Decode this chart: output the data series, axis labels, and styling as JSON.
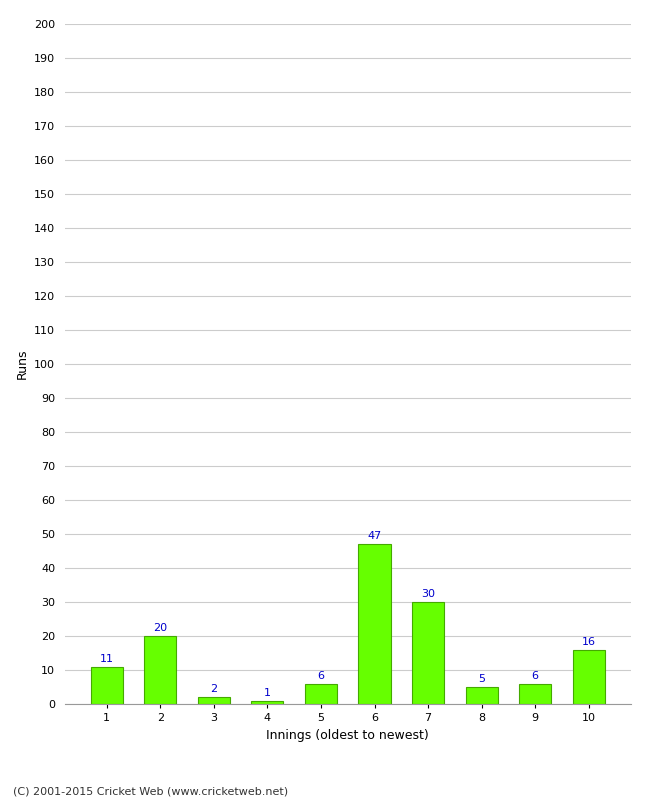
{
  "categories": [
    "1",
    "2",
    "3",
    "4",
    "5",
    "6",
    "7",
    "8",
    "9",
    "10"
  ],
  "values": [
    11,
    20,
    2,
    1,
    6,
    47,
    30,
    5,
    6,
    16
  ],
  "bar_color": "#66ff00",
  "bar_edge_color": "#44aa00",
  "annotation_color": "#0000cc",
  "xlabel": "Innings (oldest to newest)",
  "ylabel": "Runs",
  "ylim": [
    0,
    200
  ],
  "yticks": [
    0,
    10,
    20,
    30,
    40,
    50,
    60,
    70,
    80,
    90,
    100,
    110,
    120,
    130,
    140,
    150,
    160,
    170,
    180,
    190,
    200
  ],
  "grid_color": "#cccccc",
  "background_color": "#ffffff",
  "footer_text": "(C) 2001-2015 Cricket Web (www.cricketweb.net)",
  "annotation_fontsize": 8,
  "axis_label_fontsize": 9,
  "tick_fontsize": 8,
  "footer_fontsize": 8
}
